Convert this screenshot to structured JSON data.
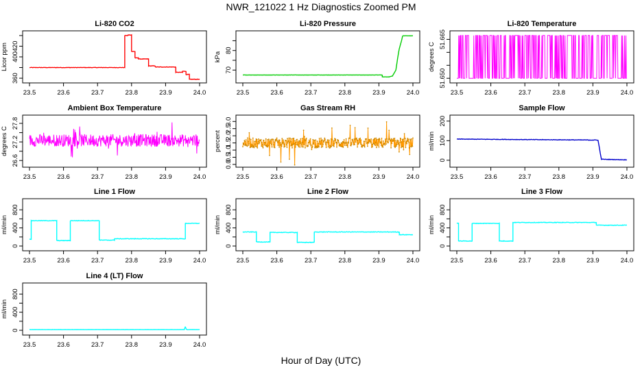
{
  "page_title": "NWR_121022  1 Hz Diagnostics Zoomed PM",
  "xlabel": "Hour of Day (UTC)",
  "chart_data": [
    {
      "type": "line",
      "title": "Li-820 CO2",
      "ylabel": "Licor ppm",
      "color": "#ff0000",
      "xlim": [
        23.5,
        24.0
      ],
      "ylim": [
        355,
        445
      ],
      "xticks": [
        "23.5",
        "23.6",
        "23.7",
        "23.8",
        "23.9",
        "24.0"
      ],
      "yticks": [
        360,
        380,
        400,
        420,
        440
      ],
      "ytick_labels": [
        "360",
        "",
        "400",
        "420",
        ""
      ],
      "noise": 0.4,
      "series": [
        {
          "x": [
            23.5,
            23.78,
            23.78,
            23.79,
            23.79,
            23.8,
            23.8,
            23.81,
            23.81,
            23.82,
            23.82,
            23.85,
            23.85,
            23.87,
            23.87,
            23.93,
            23.93,
            23.95,
            23.95,
            23.96,
            23.96,
            23.97,
            23.97,
            24.0
          ],
          "y": [
            380,
            380,
            440,
            440,
            441,
            441,
            410,
            410,
            398,
            398,
            396,
            396,
            383,
            383,
            381,
            381,
            371,
            371,
            373,
            373,
            367,
            367,
            358,
            358
          ]
        }
      ]
    },
    {
      "type": "line",
      "title": "Li-820 Pressure",
      "ylabel": "kPa",
      "color": "#00cc00",
      "xlim": [
        23.5,
        24.0
      ],
      "ylim": [
        64.5,
        89
      ],
      "xticks": [
        "23.5",
        "23.6",
        "23.7",
        "23.8",
        "23.9",
        "24.0"
      ],
      "yticks": [
        70,
        75,
        80,
        85
      ],
      "ytick_labels": [
        "70",
        "",
        "80",
        ""
      ],
      "noise": 0.05,
      "series": [
        {
          "x": [
            23.5,
            23.91,
            23.91,
            23.93,
            23.94,
            23.95,
            23.955,
            23.96,
            23.965,
            23.97,
            24.0
          ],
          "y": [
            67.5,
            67.5,
            66.5,
            66.5,
            67,
            70,
            76,
            81,
            84,
            87.5,
            87.5
          ]
        }
      ]
    },
    {
      "type": "noise",
      "title": "Li-820 Temperature",
      "ylabel": "degrees C",
      "color": "#ff00ff",
      "xlim": [
        23.5,
        24.0
      ],
      "ylim": [
        51.649,
        51.6675
      ],
      "xticks": [
        "23.5",
        "23.6",
        "23.7",
        "23.8",
        "23.9",
        "24.0"
      ],
      "yticks": [
        51.65,
        51.655,
        51.66,
        51.665
      ],
      "ytick_labels": [
        "51.650",
        "",
        "",
        "51.665"
      ],
      "levels": [
        51.65,
        51.6665
      ],
      "switch_fraction": 0.42
    },
    {
      "type": "noise",
      "title": "Ambient Box Temperature",
      "ylabel": "degrees C",
      "color": "#ff00ff",
      "xlim": [
        23.5,
        24.0
      ],
      "ylim": [
        26.45,
        28.0
      ],
      "xticks": [
        "23.5",
        "23.6",
        "23.7",
        "23.8",
        "23.9",
        "24.0"
      ],
      "yticks": [
        26.6,
        26.9,
        27.2,
        27.5,
        27.8
      ],
      "ytick_labels": [
        "26.6",
        "",
        "27.2",
        "",
        "27.8"
      ],
      "mean": 27.25,
      "spread": 0.2,
      "spike": 0.45
    },
    {
      "type": "noise",
      "title": "Gas Stream RH",
      "ylabel": "percent",
      "color": "#ff9900",
      "xlim": [
        23.5,
        24.0
      ],
      "ylim": [
        -0.05,
        3.3
      ],
      "xticks": [
        "23.5",
        "23.6",
        "23.7",
        "23.8",
        "23.9",
        "24.0"
      ],
      "yticks": [
        0.0,
        0.5,
        1.0,
        1.5,
        2.0,
        2.5,
        3.0
      ],
      "ytick_labels": [
        "0.0",
        "0.5",
        "1.0",
        "1.5",
        "2.0",
        "2.5",
        "3.0"
      ],
      "mean": 1.5,
      "spread": 0.35,
      "spike": 1.5,
      "points": true
    },
    {
      "type": "line",
      "title": "Sample Flow",
      "ylabel": "ml/min",
      "color": "#0000cc",
      "xlim": [
        23.5,
        24.0
      ],
      "ylim": [
        -25,
        220
      ],
      "xticks": [
        "23.5",
        "23.6",
        "23.7",
        "23.8",
        "23.9",
        "24.0"
      ],
      "yticks": [
        0,
        100,
        200
      ],
      "ytick_labels": [
        "0",
        "100",
        "200"
      ],
      "noise": 1.2,
      "series": [
        {
          "x": [
            23.5,
            23.915,
            23.915,
            23.925,
            23.925,
            24.0
          ],
          "y": [
            108,
            103,
            103,
            5,
            5,
            2
          ]
        }
      ]
    },
    {
      "type": "line",
      "title": "Line 1 Flow",
      "ylabel": "ml/min",
      "color": "#00ffff",
      "xlim": [
        23.5,
        24.0
      ],
      "ylim": [
        -60,
        1000
      ],
      "xticks": [
        "23.5",
        "23.6",
        "23.7",
        "23.8",
        "23.9",
        "24.0"
      ],
      "yticks": [
        0,
        200,
        400,
        600,
        800
      ],
      "ytick_labels": [
        "0",
        "",
        "400",
        "",
        "800"
      ],
      "noise": 6,
      "series": [
        {
          "x": [
            23.5,
            23.505,
            23.505,
            23.58,
            23.58,
            23.62,
            23.62,
            23.705,
            23.705,
            23.75,
            23.75,
            23.958,
            23.958,
            24.0
          ],
          "y": [
            150,
            150,
            560,
            560,
            120,
            120,
            560,
            560,
            130,
            130,
            160,
            160,
            500,
            500
          ]
        }
      ]
    },
    {
      "type": "line",
      "title": "Line 2 Flow",
      "ylabel": "ml/min",
      "color": "#00ffff",
      "xlim": [
        23.5,
        24.0
      ],
      "ylim": [
        -60,
        1000
      ],
      "xticks": [
        "23.5",
        "23.6",
        "23.7",
        "23.8",
        "23.9",
        "24.0"
      ],
      "yticks": [
        0,
        200,
        400,
        600,
        800
      ],
      "ytick_labels": [
        "0",
        "",
        "400",
        "",
        "800"
      ],
      "noise": 6,
      "series": [
        {
          "x": [
            23.5,
            23.54,
            23.54,
            23.58,
            23.58,
            23.66,
            23.66,
            23.71,
            23.71,
            23.96,
            23.96,
            24.0
          ],
          "y": [
            310,
            310,
            90,
            90,
            300,
            300,
            80,
            80,
            310,
            310,
            250,
            250
          ]
        }
      ]
    },
    {
      "type": "line",
      "title": "Line 3 Flow",
      "ylabel": "ml/min",
      "color": "#00ffff",
      "xlim": [
        23.5,
        24.0
      ],
      "ylim": [
        -60,
        1000
      ],
      "xticks": [
        "23.5",
        "23.6",
        "23.7",
        "23.8",
        "23.9",
        "24.0"
      ],
      "yticks": [
        0,
        200,
        400,
        600,
        800
      ],
      "ytick_labels": [
        "0",
        "",
        "400",
        "",
        "800"
      ],
      "noise": 6,
      "series": [
        {
          "x": [
            23.5,
            23.505,
            23.505,
            23.545,
            23.545,
            23.625,
            23.625,
            23.665,
            23.665,
            23.91,
            23.91,
            24.0
          ],
          "y": [
            500,
            500,
            110,
            110,
            500,
            500,
            110,
            110,
            520,
            520,
            460,
            460
          ]
        }
      ]
    },
    {
      "type": "line",
      "title": "Line 4 (LT) Flow",
      "ylabel": "ml/min",
      "color": "#00ffff",
      "xlim": [
        23.5,
        24.0
      ],
      "ylim": [
        -60,
        1000
      ],
      "xticks": [
        "23.5",
        "23.6",
        "23.7",
        "23.8",
        "23.9",
        "24.0"
      ],
      "yticks": [
        0,
        200,
        400,
        600,
        800
      ],
      "ytick_labels": [
        "0",
        "",
        "400",
        "",
        "800"
      ],
      "noise": 2,
      "series": [
        {
          "x": [
            23.5,
            23.955,
            23.958,
            23.961,
            23.964,
            24.0
          ],
          "y": [
            15,
            15,
            80,
            20,
            15,
            15
          ]
        }
      ]
    }
  ]
}
